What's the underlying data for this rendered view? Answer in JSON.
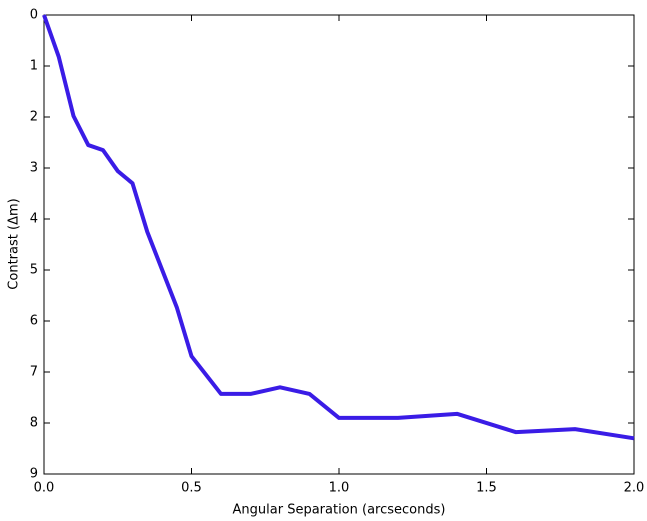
{
  "chart_data": {
    "type": "line",
    "x_label": "Angular Separation (arcseconds)",
    "y_label": "Contrast (Δm)",
    "x": [
      0,
      0.05,
      0.1,
      0.15,
      0.2,
      0.25,
      0.3,
      0.35,
      0.45,
      0.5,
      0.6,
      0.7,
      0.8,
      0.9,
      1.0,
      1.2,
      1.4,
      1.6,
      1.8,
      2.0
    ],
    "series": [
      {
        "name": "contrast",
        "color": "#3a1ce6",
        "values": [
          0,
          0.82,
          1.98,
          2.55,
          2.65,
          3.06,
          3.3,
          4.25,
          5.73,
          6.69,
          7.43,
          7.43,
          7.3,
          7.43,
          7.9,
          7.9,
          7.82,
          8.18,
          8.12,
          8.3
        ]
      }
    ],
    "xlim": [
      0,
      2.0
    ],
    "xticks": [
      {
        "value": 0,
        "label": "0.0"
      },
      0.5,
      {
        "value": 1,
        "label": "1.0"
      },
      1.5,
      {
        "value": 2,
        "label": "2.0"
      }
    ],
    "ylim": [
      0,
      9
    ],
    "yticks": [
      0,
      1,
      2,
      3,
      4,
      5,
      6,
      7,
      8,
      9
    ],
    "invert_y": true,
    "grid": false
  }
}
